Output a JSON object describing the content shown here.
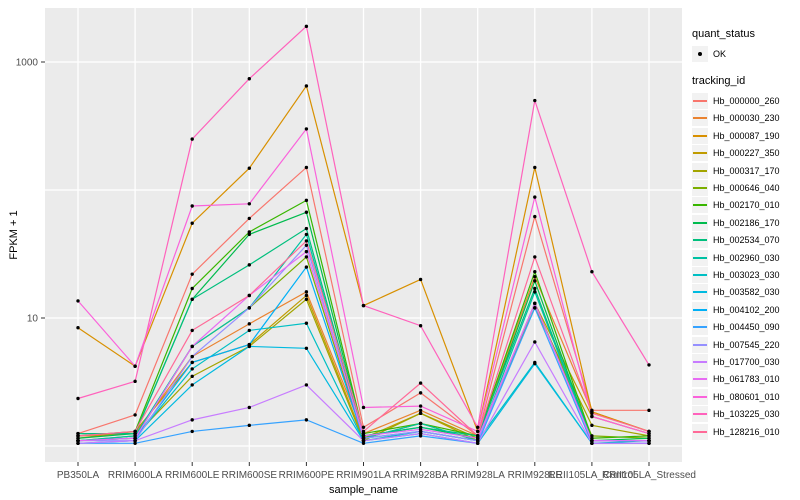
{
  "axes": {
    "x_title": "sample_name",
    "y_title": "FPKM + 1"
  },
  "legend": {
    "quant_status_title": "quant_status",
    "quant_status_items": [
      {
        "label": "OK",
        "marker": "point",
        "color": "#000000"
      }
    ],
    "tracking_id_title": "tracking_id"
  },
  "style": {
    "panel_bg": "#EBEBEB",
    "gridline_color": "#FFFFFF",
    "tick_color": "#333333",
    "tick_label_color": "#4D4D4D",
    "point_color": "#000000",
    "legend_key_bg": "#F2F2F2"
  },
  "chart_data": {
    "type": "line",
    "title": "",
    "xlabel": "sample_name",
    "ylabel": "FPKM + 1",
    "y_scale": "log10",
    "ylim": [
      0.75,
      2600
    ],
    "grid": true,
    "legend_position": "right",
    "y_ticks": [
      {
        "value": 1000,
        "label": "1000"
      },
      {
        "value": 10,
        "label": "10"
      }
    ],
    "y_gridlines": [
      1,
      10,
      100,
      1000
    ],
    "categories": [
      "PB350LA",
      "RRIM600LA",
      "RRIM600LE",
      "RRIM600SE",
      "RRIM600PE",
      "RRIM901LA",
      "RRIM928BA",
      "RRIM928LA",
      "RRIM928LE",
      "RRII105LA_Control",
      "RRII105LA_Stressed"
    ],
    "point_marker": "OK",
    "series": [
      {
        "name": "Hb_000000_260",
        "color": "#F8766D",
        "values": [
          1.25,
          1.75,
          22,
          60,
          150,
          1.4,
          2.6,
          1.2,
          62,
          1.9,
          1.9
        ]
      },
      {
        "name": "Hb_000030_230",
        "color": "#EA8331",
        "values": [
          1.2,
          1.25,
          5,
          9,
          16,
          1.25,
          1.9,
          1.2,
          21,
          1.85,
          1.3
        ]
      },
      {
        "name": "Hb_000087_190",
        "color": "#D89000",
        "values": [
          8.4,
          4.2,
          55,
          148,
          650,
          12.5,
          20,
          1.3,
          150,
          1.85,
          1.3
        ]
      },
      {
        "name": "Hb_000227_350",
        "color": "#C09B00",
        "values": [
          1.15,
          1.3,
          4.5,
          6.2,
          15,
          1.15,
          1.8,
          1.1,
          13,
          1.7,
          1.25
        ]
      },
      {
        "name": "Hb_000317_170",
        "color": "#A3A500",
        "values": [
          1.1,
          1.2,
          3.5,
          6,
          14,
          1.1,
          1.8,
          1.15,
          12,
          1.45,
          1.2
        ]
      },
      {
        "name": "Hb_000646_040",
        "color": "#7CAE00",
        "values": [
          1.1,
          1.15,
          6,
          12,
          30,
          1.15,
          1.5,
          1.1,
          13,
          1.2,
          1.15
        ]
      },
      {
        "name": "Hb_002170_010",
        "color": "#39B600",
        "values": [
          1.2,
          1.3,
          17,
          47,
          83,
          1.25,
          1.5,
          1.2,
          23,
          1.15,
          1.2
        ]
      },
      {
        "name": "Hb_002186_170",
        "color": "#00BB4E",
        "values": [
          1.15,
          1.25,
          14,
          45,
          67,
          1.2,
          1.4,
          1.15,
          19.5,
          1.1,
          1.15
        ]
      },
      {
        "name": "Hb_002534_070",
        "color": "#00BF7D",
        "values": [
          1.25,
          1.25,
          14,
          26,
          50,
          1.2,
          1.4,
          1.2,
          17,
          1.1,
          1.1
        ]
      },
      {
        "name": "Hb_002960_030",
        "color": "#00C1A3",
        "values": [
          1.1,
          1.2,
          6,
          12,
          45,
          1.15,
          1.5,
          1.1,
          16,
          1.1,
          1.1
        ]
      },
      {
        "name": "Hb_003023_030",
        "color": "#00BFC4",
        "values": [
          1.1,
          1.15,
          4,
          8,
          9.1,
          1.1,
          1.3,
          1.1,
          4.5,
          1.05,
          1.1
        ]
      },
      {
        "name": "Hb_003582_030",
        "color": "#00BAE0",
        "values": [
          1.05,
          1.1,
          3,
          6,
          5.8,
          1.1,
          1.25,
          1.05,
          4.4,
          1.05,
          1.05
        ]
      },
      {
        "name": "Hb_004102_200",
        "color": "#00B0F6",
        "values": [
          1.1,
          1.15,
          4.5,
          6.2,
          25,
          1.15,
          1.3,
          1.1,
          13,
          1.1,
          1.1
        ]
      },
      {
        "name": "Hb_004450_090",
        "color": "#35A2FF",
        "values": [
          1.05,
          1.05,
          1.3,
          1.45,
          1.6,
          1.05,
          1.2,
          1.05,
          12,
          1.05,
          1.05
        ]
      },
      {
        "name": "Hb_007545_220",
        "color": "#9590FF",
        "values": [
          1.1,
          1.1,
          5,
          12,
          37,
          1.15,
          1.3,
          1.1,
          13,
          1.1,
          1.1
        ]
      },
      {
        "name": "Hb_017700_030",
        "color": "#C77CFF",
        "values": [
          1.05,
          1.1,
          1.6,
          2.0,
          3.0,
          1.1,
          1.25,
          1.05,
          6.5,
          1.05,
          1.05
        ]
      },
      {
        "name": "Hb_061783_010",
        "color": "#E76BF3",
        "values": [
          1.1,
          1.15,
          6,
          15,
          33,
          1.2,
          1.35,
          1.15,
          13,
          1.1,
          1.1
        ]
      },
      {
        "name": "Hb_080601_010",
        "color": "#FA62DB",
        "values": [
          13.6,
          4.2,
          75,
          78,
          300,
          2.0,
          2.05,
          1.3,
          88,
          1.7,
          1.25
        ]
      },
      {
        "name": "Hb_103225_030",
        "color": "#FF62BC",
        "values": [
          2.35,
          3.2,
          250,
          740,
          1900,
          12.5,
          8.7,
          1.4,
          500,
          23,
          4.3
        ]
      },
      {
        "name": "Hb_128216_010",
        "color": "#FF6A98",
        "values": [
          1.2,
          1.3,
          8,
          15,
          40,
          1.3,
          3.1,
          1.2,
          30,
          1.8,
          1.3
        ]
      }
    ]
  }
}
